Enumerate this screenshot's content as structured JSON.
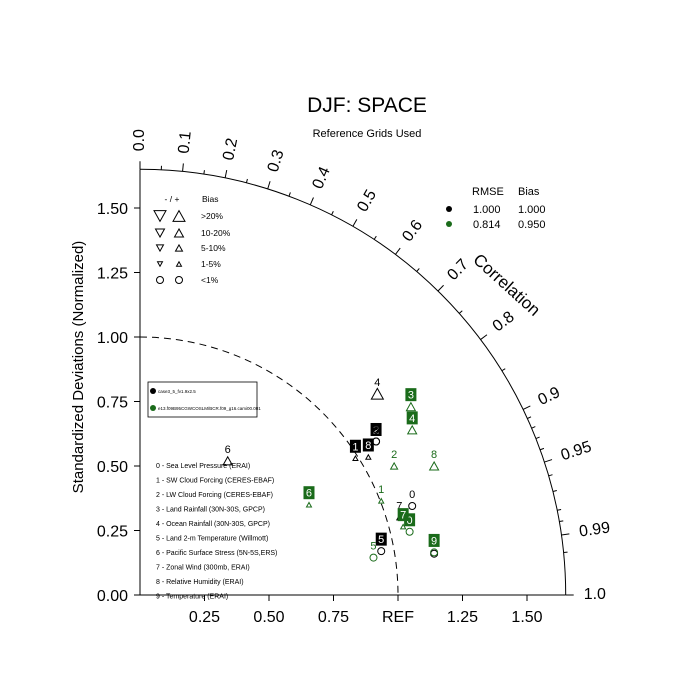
{
  "chart_data": {
    "type": "scatter",
    "subtype": "taylor-diagram",
    "title": "DJF: SPACE",
    "subtitle": "Reference Grids Used",
    "ylabel": "Standardized Deviations (Normalized)",
    "xlabel": "REF",
    "arc_label": "Correlation",
    "std_range": [
      0,
      1.65
    ],
    "std_ticks": [
      0.0,
      0.25,
      0.5,
      0.75,
      1.0,
      1.25,
      1.5
    ],
    "std_tick_labels_y": [
      "0.00",
      "0.25",
      "0.50",
      "0.75",
      "1.00",
      "1.25",
      "1.50"
    ],
    "std_tick_labels_x": [
      "0.25",
      "0.50",
      "0.75",
      "REF",
      "1.25",
      "1.50"
    ],
    "correlation_ticks": [
      "0.0",
      "0.1",
      "0.2",
      "0.3",
      "0.4",
      "0.5",
      "0.6",
      "0.7",
      "0.8",
      "0.9",
      "0.95",
      "0.99",
      "1.0"
    ],
    "reference_arc_std": 1.0,
    "rmse_table": {
      "headers": [
        "RMSE",
        "Bias"
      ],
      "rows": [
        {
          "color": "#000000",
          "rmse": "1.000",
          "bias": "1.000"
        },
        {
          "color": "#1a6b1a",
          "rmse": "0.814",
          "bias": "0.950"
        }
      ]
    },
    "bias_legend": {
      "header_sign": "- / +",
      "header_label": "Bias",
      "levels": [
        ">20%",
        "10-20%",
        "5-10%",
        "1-5%",
        "<1%"
      ]
    },
    "case_legend": [
      "case3_5_fv1.9x2.5",
      "e13.f09B95CGWCOSLM/BCR.f09_g16.cami00.001"
    ],
    "variable_legend": [
      "0 - Sea Level Pressure (ERAI)",
      "1 - SW Cloud Forcing (CERES-EBAF)",
      "2 - LW Cloud Forcing (CERES-EBAF)",
      "3 - Land Rainfall (30N-30S, GPCP)",
      "4 - Ocean Rainfall (30N-30S, GPCP)",
      "5 - Land 2-m Temperature (Willmott)",
      "6 - Pacific Surface Stress (5N-5S,ERS)",
      "7 - Zonal Wind (300mb, ERAI)",
      "8 - Relative Humidity (ERAI)",
      "9 - Temperature (ERAI)"
    ],
    "series": [
      {
        "color": "#000000",
        "points": [
          {
            "id": "0",
            "x": 1.055,
            "y": 0.345,
            "bias": "<1%",
            "label_style": "text"
          },
          {
            "id": "1",
            "x": 0.835,
            "y": 0.53,
            "bias": "1-5% up",
            "label_style": "box"
          },
          {
            "id": "2",
            "x": 0.915,
            "y": 0.595,
            "bias": "<1%",
            "label_style": "box"
          },
          {
            "id": "3",
            "x": 0.915,
            "y": 0.595,
            "bias": "<1%",
            "label_style": "text"
          },
          {
            "id": "4",
            "x": 0.92,
            "y": 0.78,
            "bias": ">20% up",
            "label_style": "text"
          },
          {
            "id": "5",
            "x": 0.935,
            "y": 0.17,
            "bias": "<1%",
            "label_style": "box"
          },
          {
            "id": "6",
            "x": 0.34,
            "y": 0.52,
            "bias": "10-20% up",
            "label_style": "text"
          },
          {
            "id": "7",
            "x": 1.005,
            "y": 0.3,
            "bias": "1-5% up",
            "label_style": "text"
          },
          {
            "id": "8",
            "x": 0.885,
            "y": 0.535,
            "bias": "1-5% up",
            "label_style": "box"
          },
          {
            "id": "9",
            "x": 1.14,
            "y": 0.16,
            "bias": "<1%",
            "label_style": "text"
          }
        ]
      },
      {
        "color": "#1a6b1a",
        "points": [
          {
            "id": "0",
            "x": 1.045,
            "y": 0.245,
            "bias": "<1%",
            "label_style": "box"
          },
          {
            "id": "1",
            "x": 0.935,
            "y": 0.365,
            "bias": "1-5% up",
            "label_style": "text"
          },
          {
            "id": "2",
            "x": 0.985,
            "y": 0.5,
            "bias": "5-10% up",
            "label_style": "text"
          },
          {
            "id": "3",
            "x": 1.05,
            "y": 0.73,
            "bias": "10-20% up",
            "label_style": "box"
          },
          {
            "id": "4",
            "x": 1.055,
            "y": 0.64,
            "bias": "10-20% up",
            "label_style": "box"
          },
          {
            "id": "5",
            "x": 0.905,
            "y": 0.145,
            "bias": "<1%",
            "label_style": "text"
          },
          {
            "id": "6",
            "x": 0.655,
            "y": 0.35,
            "bias": "1-5% up",
            "label_style": "box"
          },
          {
            "id": "7",
            "x": 1.02,
            "y": 0.265,
            "bias": "1-5% up",
            "label_style": "box"
          },
          {
            "id": "8",
            "x": 1.14,
            "y": 0.5,
            "bias": "10-20% up",
            "label_style": "text"
          },
          {
            "id": "9",
            "x": 1.14,
            "y": 0.165,
            "bias": "<1%",
            "label_style": "box"
          }
        ]
      }
    ],
    "grid": false,
    "legend_placement": "top-left, top-right, left"
  }
}
